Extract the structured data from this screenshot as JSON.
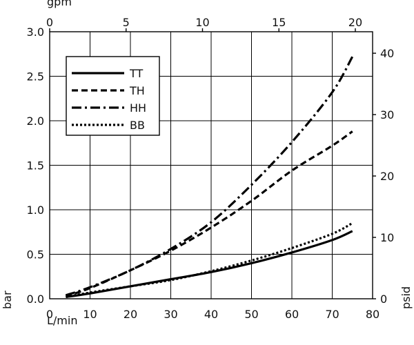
{
  "chart_data": {
    "type": "line",
    "x_unit": "L/min",
    "x2_unit": "gpm",
    "y_unit": "bar",
    "y2_unit": "psid",
    "xlim": [
      0,
      80
    ],
    "ylim": [
      0,
      3.0
    ],
    "x2lim": [
      0,
      21.13
    ],
    "y2lim": [
      0,
      43.5
    ],
    "x_ticks": [
      "0",
      "10",
      "20",
      "30",
      "40",
      "50",
      "60",
      "70",
      "80"
    ],
    "y_ticks": [
      "0.0",
      "0.5",
      "1.0",
      "1.5",
      "2.0",
      "2.5",
      "3.0"
    ],
    "x2_ticks": [
      "0",
      "5",
      "10",
      "15",
      "20"
    ],
    "y2_ticks": [
      "0",
      "10",
      "20",
      "30",
      "40"
    ],
    "grid": true,
    "legend_position": "top-left",
    "series": [
      {
        "name": "TT",
        "dash": "solid",
        "x": [
          4,
          10,
          20,
          30,
          40,
          50,
          60,
          70,
          75
        ],
        "y": [
          0.02,
          0.06,
          0.14,
          0.22,
          0.3,
          0.4,
          0.52,
          0.66,
          0.76
        ]
      },
      {
        "name": "TH",
        "dash": "dash",
        "x": [
          4,
          10,
          20,
          30,
          40,
          50,
          60,
          70,
          75
        ],
        "y": [
          0.03,
          0.12,
          0.32,
          0.54,
          0.8,
          1.1,
          1.44,
          1.72,
          1.88
        ]
      },
      {
        "name": "HH",
        "dash": "dashdot",
        "x": [
          4,
          10,
          20,
          30,
          40,
          50,
          60,
          70,
          75
        ],
        "y": [
          0.04,
          0.13,
          0.32,
          0.56,
          0.86,
          1.28,
          1.76,
          2.32,
          2.72
        ]
      },
      {
        "name": "BB",
        "dash": "dot",
        "x": [
          4,
          10,
          20,
          30,
          40,
          50,
          60,
          70,
          75
        ],
        "y": [
          0.02,
          0.07,
          0.14,
          0.21,
          0.31,
          0.43,
          0.57,
          0.73,
          0.85
        ]
      }
    ]
  }
}
